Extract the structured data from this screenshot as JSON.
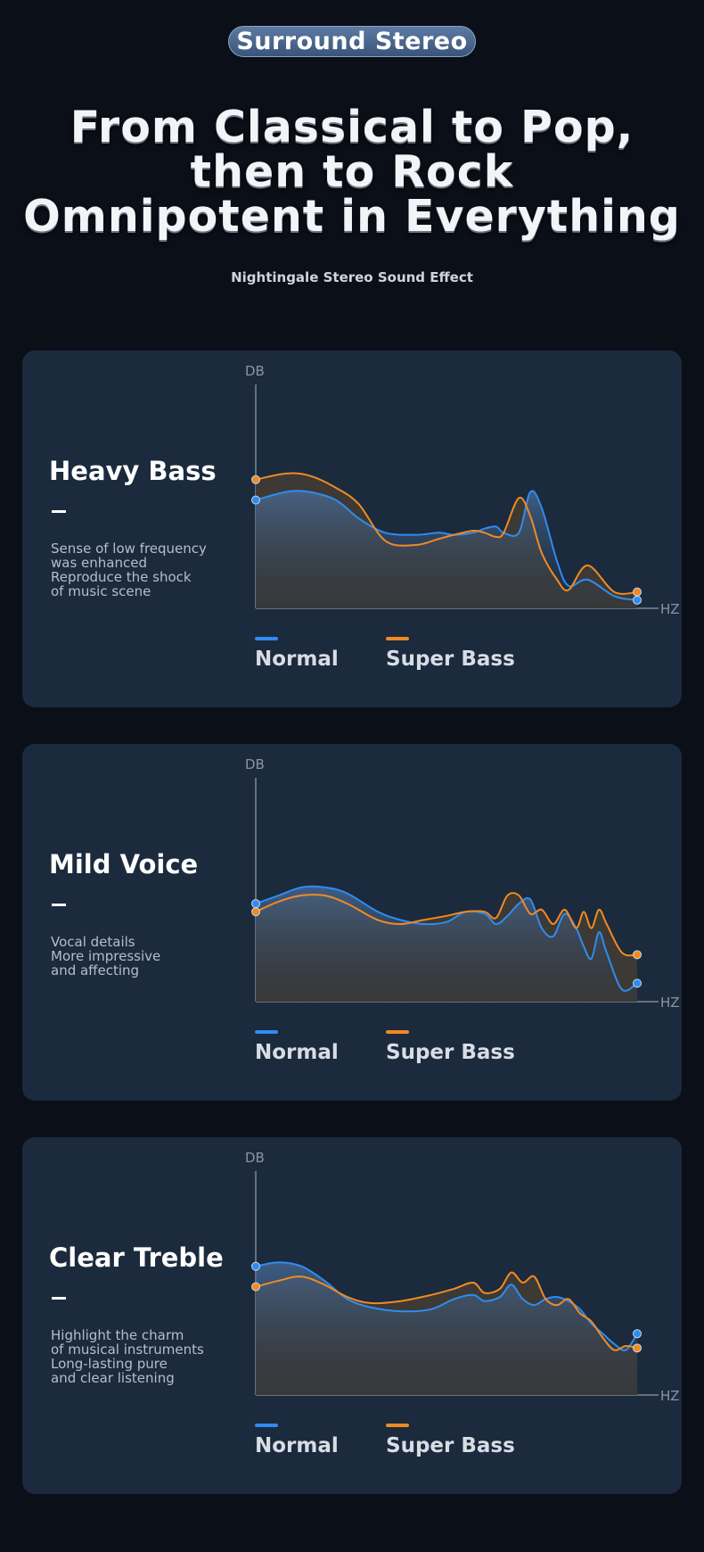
{
  "header": {
    "badge": "Surround Stereo",
    "headline": [
      "From Classical to Pop,",
      "then to Rock",
      "Omnipotent in Everything"
    ],
    "subtitle": "Nightingale Stereo Sound Effect"
  },
  "colors": {
    "normal": "#2f8cf0",
    "super_bass": "#f08a24",
    "card_bg": "#1b2a3d",
    "page_bg": "#0b0f18"
  },
  "cards": [
    {
      "title": "Heavy Bass",
      "dash": "—",
      "description": [
        "Sense of low frequency",
        "was enhanced",
        "Reproduce the shock",
        "of music scene"
      ],
      "legend": {
        "normal": "Normal",
        "super_bass": "Super Bass"
      }
    },
    {
      "title": "Mild Voice",
      "dash": "—",
      "description": [
        "Vocal details",
        "More impressive",
        "and affecting"
      ],
      "legend": {
        "normal": "Normal",
        "super_bass": "Super Bass"
      }
    },
    {
      "title": "Clear Treble",
      "dash": "—",
      "description": [
        "Highlight the charm",
        "of musical instruments",
        "Long-lasting pure",
        "and clear listening"
      ],
      "legend": {
        "normal": "Normal",
        "super_bass": "Super Bass"
      }
    }
  ],
  "chart_data": [
    {
      "type": "area",
      "xlabel": "HZ",
      "ylabel": "DB",
      "ylim": [
        0,
        100
      ],
      "series": [
        {
          "name": "Normal",
          "x": [
            0,
            8,
            14,
            21,
            27,
            34,
            42,
            48,
            52,
            57,
            60,
            63,
            65,
            69,
            72,
            75,
            79,
            82,
            87,
            94,
            100
          ],
          "values": [
            53,
            57,
            57,
            53,
            44,
            37,
            36,
            37,
            36,
            37,
            39,
            40,
            37,
            37,
            57,
            49,
            23,
            11,
            14,
            6,
            4
          ]
        },
        {
          "name": "Super Bass",
          "x": [
            0,
            8,
            14,
            21,
            27,
            34,
            42,
            48,
            52,
            57,
            60,
            63,
            65,
            69,
            72,
            75,
            79,
            82,
            87,
            94,
            100
          ],
          "values": [
            63,
            66,
            65,
            59,
            51,
            33,
            31,
            34,
            36,
            38,
            37,
            35,
            37,
            54,
            45,
            27,
            14,
            9,
            21,
            8,
            8
          ]
        }
      ]
    },
    {
      "type": "area",
      "xlabel": "HZ",
      "ylabel": "DB",
      "ylim": [
        0,
        100
      ],
      "series": [
        {
          "name": "Normal",
          "x": [
            0,
            6,
            12,
            18,
            24,
            32,
            38,
            44,
            50,
            55,
            60,
            63,
            66,
            69,
            72,
            75,
            78,
            81,
            84,
            86,
            88,
            90,
            92,
            96,
            100
          ],
          "values": [
            48,
            52,
            56,
            56,
            53,
            44,
            40,
            38,
            39,
            44,
            43,
            38,
            42,
            48,
            50,
            36,
            32,
            43,
            36,
            27,
            21,
            34,
            24,
            6,
            9
          ]
        },
        {
          "name": "Super Bass",
          "x": [
            0,
            6,
            12,
            18,
            24,
            32,
            38,
            44,
            50,
            55,
            60,
            63,
            66,
            69,
            72,
            75,
            78,
            81,
            84,
            86,
            88,
            90,
            92,
            96,
            100
          ],
          "values": [
            44,
            49,
            52,
            52,
            48,
            40,
            38,
            40,
            42,
            44,
            44,
            41,
            52,
            52,
            43,
            45,
            38,
            45,
            36,
            44,
            36,
            45,
            38,
            24,
            23
          ]
        }
      ]
    },
    {
      "type": "area",
      "xlabel": "HZ",
      "ylabel": "DB",
      "ylim": [
        0,
        100
      ],
      "series": [
        {
          "name": "Normal",
          "x": [
            0,
            6,
            12,
            18,
            24,
            30,
            38,
            46,
            52,
            57,
            60,
            64,
            67,
            70,
            73,
            76,
            79,
            82,
            85,
            88,
            91,
            94,
            97,
            100
          ],
          "values": [
            63,
            65,
            63,
            56,
            47,
            43,
            41,
            42,
            47,
            49,
            46,
            48,
            54,
            47,
            44,
            47,
            48,
            46,
            42,
            35,
            30,
            25,
            22,
            30
          ]
        },
        {
          "name": "Super Bass",
          "x": [
            0,
            6,
            12,
            18,
            24,
            30,
            38,
            46,
            52,
            57,
            60,
            64,
            67,
            70,
            73,
            76,
            79,
            82,
            85,
            88,
            91,
            94,
            97,
            100
          ],
          "values": [
            53,
            56,
            58,
            54,
            48,
            45,
            46,
            49,
            52,
            55,
            50,
            52,
            60,
            55,
            58,
            47,
            44,
            47,
            40,
            36,
            28,
            22,
            24,
            23
          ]
        }
      ]
    }
  ]
}
